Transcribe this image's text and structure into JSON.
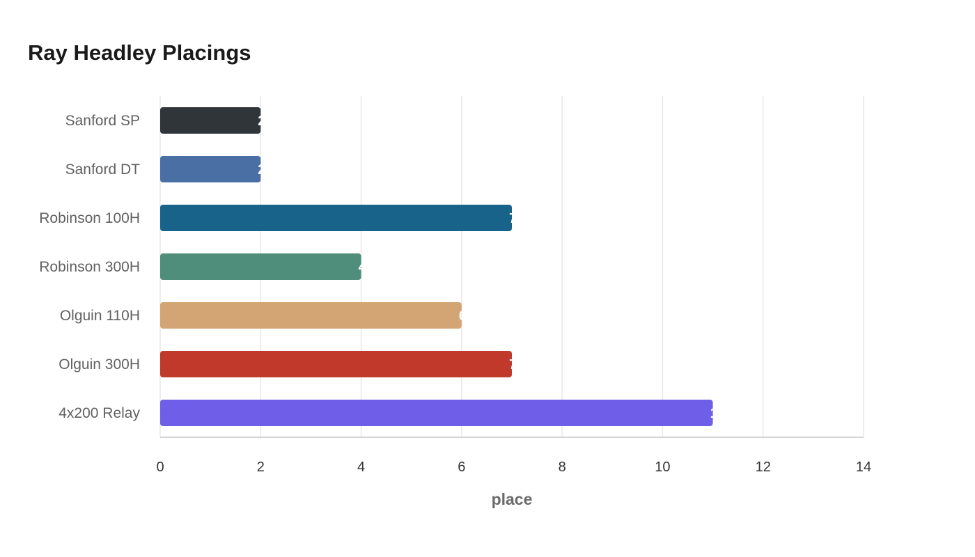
{
  "chart_data": {
    "type": "bar",
    "orientation": "horizontal",
    "title": "Ray Headley Placings",
    "xlabel": "place",
    "ylabel": "",
    "categories": [
      "Sanford SP",
      "Sanford DT",
      "Robinson 100H",
      "Robinson 300H",
      "Olguin 110H",
      "Olguin 300H",
      "4x200 Relay"
    ],
    "values": [
      2,
      2,
      7,
      4,
      6,
      7,
      11
    ],
    "colors": [
      "#2f3538",
      "#4a6fa5",
      "#186389",
      "#4e8e7a",
      "#d4a574",
      "#c0392b",
      "#6f5fe8"
    ],
    "xlim": [
      0,
      14
    ],
    "xticks": [
      "0",
      "2",
      "4",
      "6",
      "8",
      "10",
      "12",
      "14"
    ],
    "grid": true,
    "data_labels": true,
    "legend": "none"
  }
}
